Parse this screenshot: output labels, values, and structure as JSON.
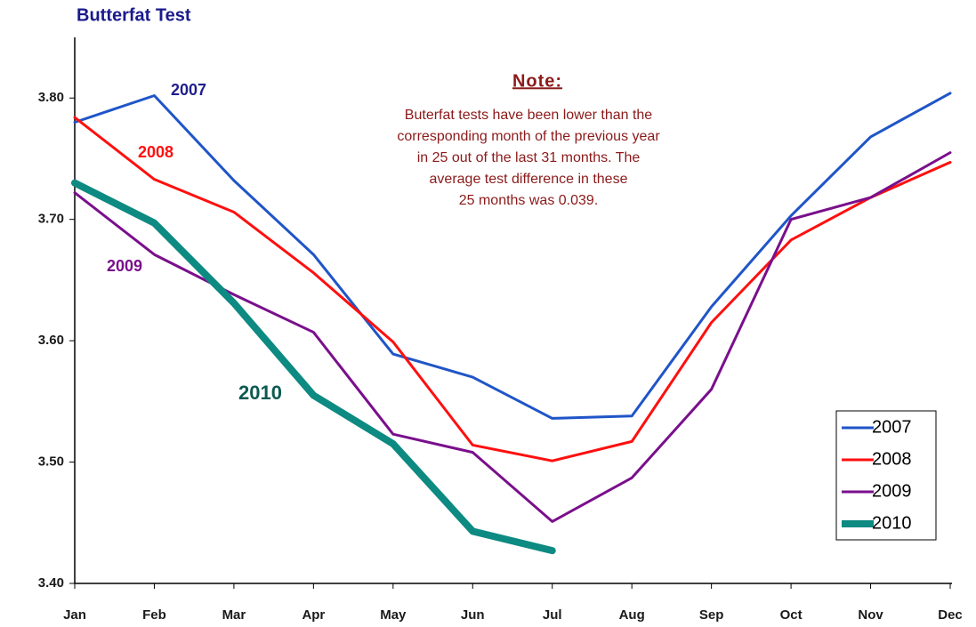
{
  "chart_data": {
    "type": "line",
    "title": "Butterfat Test",
    "categories": [
      "Jan",
      "Feb",
      "Mar",
      "Apr",
      "May",
      "Jun",
      "Jul",
      "Aug",
      "Sep",
      "Oct",
      "Nov",
      "Dec"
    ],
    "series": [
      {
        "name": "2007",
        "color": "#1f55c8",
        "line_width": 3,
        "values": [
          3.78,
          3.802,
          3.732,
          3.671,
          3.589,
          3.57,
          3.536,
          3.538,
          3.628,
          3.703,
          3.768,
          3.804
        ]
      },
      {
        "name": "2008",
        "color": "#ff0f0f",
        "line_width": 3,
        "values": [
          3.784,
          3.733,
          3.706,
          3.656,
          3.599,
          3.514,
          3.501,
          3.517,
          3.615,
          3.683,
          3.718,
          3.747
        ]
      },
      {
        "name": "2009",
        "color": "#7a0f8c",
        "line_width": 3,
        "values": [
          3.722,
          3.671,
          3.638,
          3.607,
          3.523,
          3.508,
          3.451,
          3.487,
          3.56,
          3.7,
          3.718,
          3.755
        ]
      },
      {
        "name": "2010",
        "color": "#0d8a82",
        "line_width": 8,
        "values": [
          3.73,
          3.697,
          3.631,
          3.555,
          3.515,
          3.443,
          3.427,
          null,
          null,
          null,
          null,
          null
        ]
      }
    ],
    "ylim": [
      3.4,
      3.85
    ],
    "yticks": [
      {
        "value": 3.4,
        "label": "3.40"
      },
      {
        "value": 3.5,
        "label": "3.50"
      },
      {
        "value": 3.6,
        "label": "3.60"
      },
      {
        "value": 3.7,
        "label": "3.70"
      },
      {
        "value": 3.8,
        "label": "3.80"
      }
    ],
    "legend": "lower right",
    "series_labels": [
      {
        "text": "2007",
        "color": "#1f1f8c"
      },
      {
        "text": "2008",
        "color": "#ff0f0f"
      },
      {
        "text": "2009",
        "color": "#7a0f8c"
      },
      {
        "text": "2010",
        "color": "#0d5a52"
      }
    ],
    "note_title": "Note:",
    "note_lines": [
      "Buterfat tests have been lower than the",
      "corresponding month of the previous year",
      "in 25 out of the last 31 months.  The",
      "average test difference in these",
      "25 months was 0.039."
    ]
  }
}
